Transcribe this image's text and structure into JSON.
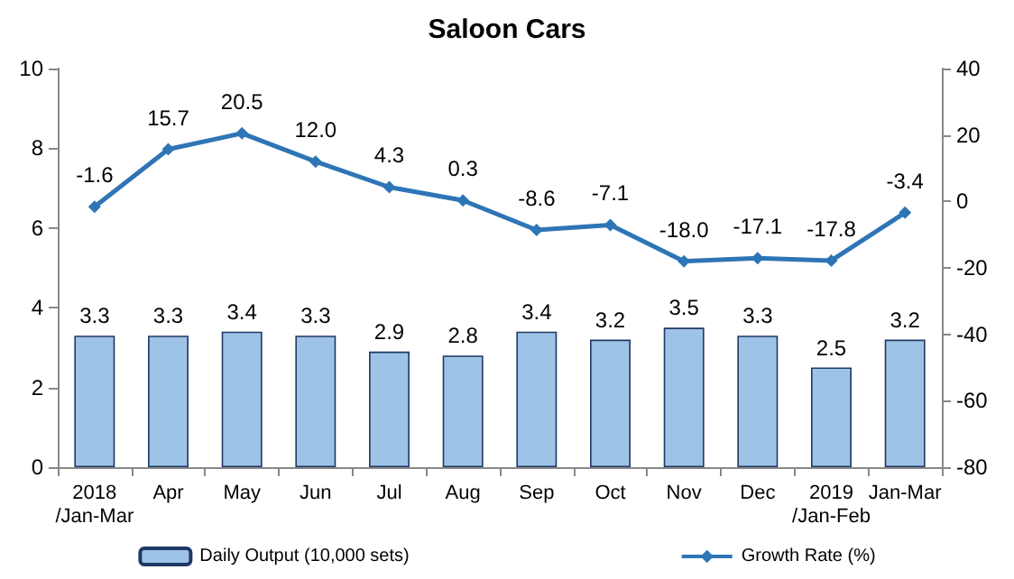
{
  "chart_data": {
    "type": "bar",
    "title": "Saloon Cars",
    "categories": [
      "2018\n/Jan-Mar",
      "Apr",
      "May",
      "Jun",
      "Jul",
      "Aug",
      "Sep",
      "Oct",
      "Nov",
      "Dec",
      "2019\n/Jan-Feb",
      "Jan-Mar"
    ],
    "series": [
      {
        "name": "Daily Output (10,000 sets)",
        "color": "#9dc3e6",
        "values": [
          3.3,
          3.3,
          3.4,
          3.3,
          2.9,
          2.8,
          3.4,
          3.2,
          3.5,
          3.3,
          2.5,
          3.2
        ],
        "value_labels": [
          "3.3",
          "3.3",
          "3.4",
          "3.3",
          "2.9",
          "2.8",
          "3.4",
          "3.2",
          "3.5",
          "3.3",
          "2.5",
          "3.2"
        ]
      },
      {
        "name": "Growth Rate (%)",
        "type": "line",
        "axis": "y2",
        "color": "#2e75b6",
        "marker": "diamond",
        "values": [
          -1.6,
          15.7,
          20.5,
          12.0,
          4.3,
          0.3,
          -8.6,
          -7.1,
          -18.0,
          -17.1,
          -17.8,
          -3.4
        ],
        "value_labels": [
          "-1.6",
          "15.7",
          "20.5",
          "12.0",
          "4.3",
          "0.3",
          "-8.6",
          "-7.1",
          "-18.0",
          "-17.1",
          "-17.8",
          "-3.4"
        ]
      }
    ],
    "ylim": [
      0,
      10
    ],
    "yticks": [
      0,
      2,
      4,
      6,
      8,
      10
    ],
    "y2lim": [
      -80,
      40
    ],
    "y2ticks": [
      -80,
      -60,
      -40,
      -20,
      0,
      20,
      40
    ],
    "grid": false,
    "legend": "bottom"
  }
}
